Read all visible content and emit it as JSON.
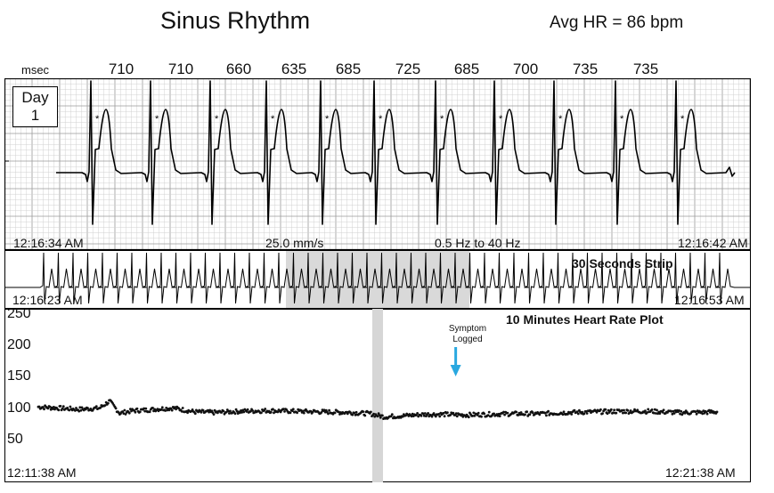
{
  "header": {
    "title": "Sinus Rhythm",
    "avg_hr": "Avg HR = 86 bpm",
    "rr_unit": "msec",
    "rr_intervals": [
      "710",
      "710",
      "660",
      "635",
      "685",
      "725",
      "685",
      "700",
      "735",
      "735"
    ]
  },
  "ecg_strip": {
    "day_label": "Day",
    "day_number": "1",
    "start_time": "12:16:34 AM",
    "end_time": "12:16:42 AM",
    "speed": "25.0 mm/s",
    "filter": "0.5 Hz  to  40 Hz",
    "beat_marker": "*"
  },
  "overview_strip": {
    "title": "30  Seconds Strip",
    "start_time": "12:16:23 AM",
    "end_time": "12:16:53 AM"
  },
  "hr_plot": {
    "title": "10  Minutes Heart Rate Plot",
    "start_time": "12:11:38 AM",
    "end_time": "12:21:38 AM",
    "symptom_line1": "Symptom",
    "symptom_line2": "Logged",
    "arrow_color": "#29a8e0"
  },
  "chart_data": {
    "type": "scatter",
    "title": "10  Minutes Heart Rate Plot",
    "xlabel": "",
    "ylabel": "",
    "x_tick_labels": [
      "12:11:38 AM",
      "12:21:38 AM"
    ],
    "ylim": [
      0,
      250
    ],
    "yticks": [
      50,
      100,
      150,
      200,
      250
    ],
    "grid": false,
    "highlighted_minute": 5,
    "symptom_logged_minute": 6.15,
    "series": [
      {
        "values": [
          [
            0.0,
            102
          ],
          [
            0.3,
            100
          ],
          [
            0.6,
            98
          ],
          [
            0.9,
            100
          ],
          [
            1.05,
            111
          ],
          [
            1.2,
            92
          ],
          [
            1.4,
            96
          ],
          [
            1.6,
            97
          ],
          [
            1.8,
            99
          ],
          [
            2.0,
            100
          ],
          [
            2.3,
            94
          ],
          [
            2.6,
            93
          ],
          [
            3.0,
            95
          ],
          [
            3.4,
            96
          ],
          [
            3.8,
            95
          ],
          [
            4.2,
            94
          ],
          [
            4.6,
            93
          ],
          [
            4.9,
            91
          ],
          [
            5.1,
            86
          ],
          [
            5.4,
            88
          ],
          [
            5.7,
            90
          ],
          [
            6.0,
            90
          ],
          [
            6.3,
            89
          ],
          [
            6.6,
            90
          ],
          [
            7.0,
            91
          ],
          [
            7.4,
            91
          ],
          [
            7.8,
            93
          ],
          [
            8.2,
            94
          ],
          [
            8.6,
            95
          ],
          [
            9.0,
            95
          ],
          [
            9.4,
            93
          ],
          [
            9.7,
            93
          ],
          [
            10.0,
            94
          ]
        ]
      }
    ]
  }
}
